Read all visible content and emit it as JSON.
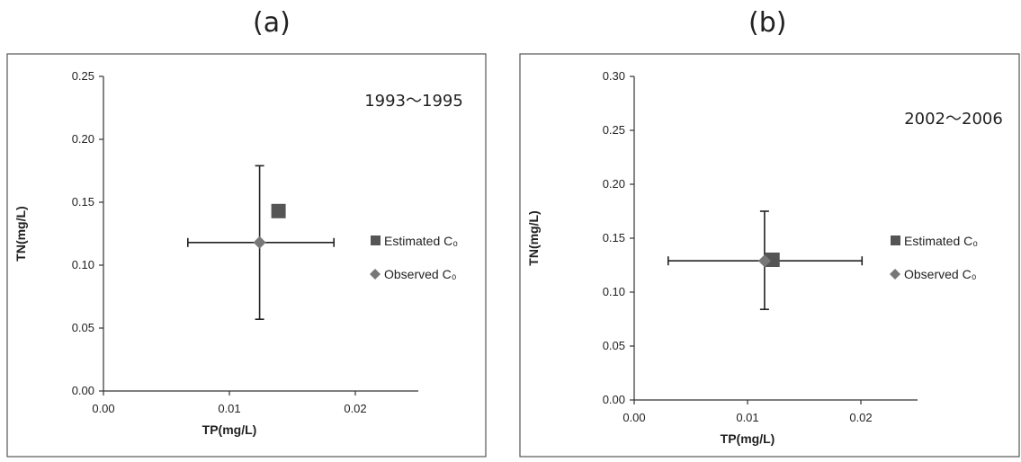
{
  "chart_data": [
    {
      "type": "scatter",
      "panel_label": "(a)",
      "annotation": "1993～1995",
      "xlabel": "TP(mg/L)",
      "ylabel": "TN(mg/L)",
      "xlim": [
        0,
        0.025
      ],
      "ylim": [
        0,
        0.25
      ],
      "x_ticks": [
        "0.00",
        "0.01",
        "0.02"
      ],
      "x_tick_values": [
        0,
        0.01,
        0.02
      ],
      "y_ticks": [
        "0.00",
        "0.05",
        "0.10",
        "0.15",
        "0.20",
        "0.25"
      ],
      "y_tick_values": [
        0,
        0.05,
        0.1,
        0.15,
        0.2,
        0.25
      ],
      "series": [
        {
          "name": "Estimated C₀",
          "marker": "square",
          "color": "#555555",
          "points": [
            {
              "x": 0.0139,
              "y": 0.143
            }
          ]
        },
        {
          "name": "Observed C₀",
          "marker": "diamond",
          "color": "#777777",
          "points": [
            {
              "x": 0.0124,
              "y": 0.118,
              "x_err": [
                0.0067,
                0.0183
              ],
              "y_err": [
                0.057,
                0.179
              ]
            }
          ]
        }
      ]
    },
    {
      "type": "scatter",
      "panel_label": "(b)",
      "annotation": "2002～2006",
      "xlabel": "TP(mg/L)",
      "ylabel": "TN(mg/L)",
      "xlim": [
        0,
        0.025
      ],
      "ylim": [
        0,
        0.3
      ],
      "x_ticks": [
        "0.00",
        "0.01",
        "0.02"
      ],
      "x_tick_values": [
        0,
        0.01,
        0.02
      ],
      "y_ticks": [
        "0.00",
        "0.05",
        "0.10",
        "0.15",
        "0.20",
        "0.25",
        "0.30"
      ],
      "y_tick_values": [
        0,
        0.05,
        0.1,
        0.15,
        0.2,
        0.25,
        0.3
      ],
      "series": [
        {
          "name": "Estimated C₀",
          "marker": "square",
          "color": "#555555",
          "points": [
            {
              "x": 0.0122,
              "y": 0.13
            }
          ]
        },
        {
          "name": "Observed C₀",
          "marker": "diamond",
          "color": "#777777",
          "points": [
            {
              "x": 0.0115,
              "y": 0.129,
              "x_err": [
                0.003,
                0.0201
              ],
              "y_err": [
                0.084,
                0.175
              ]
            }
          ]
        }
      ]
    }
  ]
}
